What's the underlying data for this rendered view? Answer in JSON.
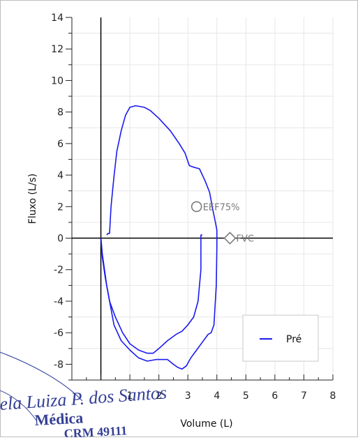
{
  "chart_data": {
    "type": "line",
    "xlabel": "Volume (L)",
    "ylabel": "Fluxo (L/s)",
    "xlim": [
      -1,
      8
    ],
    "ylim": [
      -9,
      14
    ],
    "x_ticks": [
      "1",
      "2",
      "3",
      "4",
      "5",
      "6",
      "7",
      "8"
    ],
    "y_ticks": [
      "14",
      "12",
      "10",
      "8",
      "6",
      "4",
      "2",
      "0",
      "-2",
      "-4",
      "-6",
      "-8"
    ],
    "grid": true,
    "legend_position": "bottom-right",
    "series": [
      {
        "name": "Pré",
        "color": "#1a1aee",
        "points": [
          [
            0.2,
            0.2
          ],
          [
            0.25,
            0.3
          ],
          [
            0.3,
            0.3
          ],
          [
            0.35,
            2.0
          ],
          [
            0.45,
            3.9
          ],
          [
            0.55,
            5.5
          ],
          [
            0.7,
            6.8
          ],
          [
            0.85,
            7.8
          ],
          [
            1.0,
            8.3
          ],
          [
            1.2,
            8.4
          ],
          [
            1.5,
            8.3
          ],
          [
            1.7,
            8.1
          ],
          [
            2.0,
            7.6
          ],
          [
            2.4,
            6.8
          ],
          [
            2.7,
            6.0
          ],
          [
            2.9,
            5.4
          ],
          [
            3.05,
            4.6
          ],
          [
            3.2,
            4.5
          ],
          [
            3.4,
            4.4
          ],
          [
            3.6,
            3.6
          ],
          [
            3.75,
            2.9
          ],
          [
            3.85,
            1.9
          ],
          [
            3.95,
            1.0
          ],
          [
            4.0,
            0.5
          ],
          [
            4.0,
            -0.5
          ],
          [
            3.98,
            -3.0
          ],
          [
            3.9,
            -5.5
          ],
          [
            3.8,
            -6.0
          ],
          [
            3.7,
            -6.1
          ],
          [
            3.5,
            -6.6
          ],
          [
            3.3,
            -7.1
          ],
          [
            3.1,
            -7.6
          ],
          [
            2.95,
            -8.1
          ],
          [
            2.8,
            -8.3
          ],
          [
            2.65,
            -8.2
          ],
          [
            2.5,
            -8.0
          ],
          [
            2.3,
            -7.7
          ],
          [
            2.1,
            -7.7
          ],
          [
            1.9,
            -7.7
          ],
          [
            1.6,
            -7.8
          ],
          [
            1.3,
            -7.6
          ],
          [
            1.0,
            -7.1
          ],
          [
            0.7,
            -6.5
          ],
          [
            0.45,
            -5.5
          ],
          [
            0.2,
            -3.0
          ],
          [
            0.05,
            -1.0
          ],
          [
            0.0,
            0.0
          ]
        ]
      },
      {
        "name": "",
        "color": "#1a1aee",
        "points": [
          [
            0.0,
            0.0
          ],
          [
            0.05,
            -1.2
          ],
          [
            0.15,
            -2.5
          ],
          [
            0.3,
            -4.0
          ],
          [
            0.5,
            -5.0
          ],
          [
            0.75,
            -6.0
          ],
          [
            1.0,
            -6.7
          ],
          [
            1.3,
            -7.1
          ],
          [
            1.6,
            -7.3
          ],
          [
            1.8,
            -7.3
          ],
          [
            2.0,
            -7.0
          ],
          [
            2.3,
            -6.5
          ],
          [
            2.6,
            -6.1
          ],
          [
            2.8,
            -5.9
          ],
          [
            3.0,
            -5.5
          ],
          [
            3.2,
            -5.0
          ],
          [
            3.35,
            -4.0
          ],
          [
            3.45,
            -2.0
          ],
          [
            3.45,
            0.2
          ],
          [
            3.5,
            0.2
          ]
        ]
      }
    ],
    "markers": [
      {
        "label": "EEF75%",
        "shape": "circle",
        "x": 3.3,
        "y": 2.0,
        "color": "#7a7a7a"
      },
      {
        "label": "FVC",
        "shape": "diamond",
        "x": 4.45,
        "y": 0.0,
        "color": "#7a7a7a"
      }
    ]
  },
  "stamp": {
    "line1": "ela Luiza P. dos Santos",
    "line2": "Médica",
    "line3": "CRM 49111"
  }
}
